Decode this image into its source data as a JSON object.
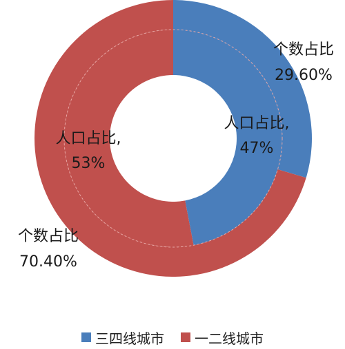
{
  "chart_data": {
    "type": "pie",
    "variant": "nested-donut",
    "title": "",
    "series": [
      {
        "ring": "outer",
        "categories": [
          "三四线城市",
          "一二线城市"
        ],
        "values": [
          29.6,
          70.4
        ],
        "labels": [
          {
            "name": "个数占比",
            "value": "29.60%"
          },
          {
            "name": "个数占比",
            "value": "70.40%"
          }
        ]
      },
      {
        "ring": "inner",
        "categories": [
          "三四线城市",
          "一二线城市"
        ],
        "values": [
          47,
          53
        ],
        "labels": [
          {
            "name": "人口占比,",
            "value": "47%"
          },
          {
            "name": "人口占比,",
            "value": "53%"
          }
        ]
      }
    ],
    "legend": {
      "position": "bottom",
      "items": [
        {
          "label": "三四线城市",
          "color": "#4a7ebb"
        },
        {
          "label": "一二线城市",
          "color": "#c0504d"
        }
      ]
    },
    "colors": {
      "series_a": "#4a7ebb",
      "series_b": "#c0504d"
    }
  }
}
